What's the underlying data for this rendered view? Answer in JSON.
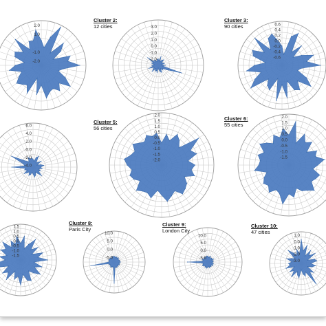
{
  "chart_data": [
    {
      "type": "radar",
      "title": "",
      "subtitle": "",
      "r_ticks": [
        "2.0",
        "1.0",
        "-1.0",
        "-2.0"
      ],
      "rlim": [
        -2.5,
        2.5
      ],
      "series_color": "#4a7abf",
      "values": [
        0.3,
        -0.5,
        0.8,
        2.3,
        -0.8,
        1.0,
        0.2,
        -1.0,
        0.9,
        0.5,
        1.8,
        0.0,
        -0.5,
        0.5,
        1.5,
        0.3,
        1.0,
        0.4,
        0.6,
        1.2,
        -0.3,
        0.8,
        -1.0,
        1.0,
        0.2,
        0.5,
        0.9,
        0.3,
        -0.2,
        1.1,
        0.4,
        -0.6,
        0.6,
        0.8,
        0.0,
        1.6,
        -0.3,
        0.5,
        0.4,
        1.5
      ]
    },
    {
      "type": "radar",
      "title": "Cluster 2:",
      "subtitle": "12 cities",
      "r_ticks": [
        "4.0",
        "3.0",
        "2.0",
        "1.0",
        "0.0",
        "-1.0",
        "-2.0"
      ],
      "rlim": [
        -3,
        4
      ],
      "series_color": "#4a7abf",
      "values": [
        -2.0,
        -2.3,
        -1.6,
        -2.4,
        -2.0,
        -1.8,
        -2.4,
        -2.2,
        -2.0,
        -2.5,
        -1.9,
        -2.3,
        0.8,
        -1.5,
        -2.2,
        -2.0,
        -2.4,
        -1.8,
        -2.0,
        -2.3,
        -2.6,
        -1.9,
        -2.2,
        -2.0,
        -2.4,
        -1.7,
        -2.1,
        -2.3,
        -1.5,
        -2.2,
        -2.0,
        -2.4,
        -1.9,
        -2.2,
        -1.0,
        -2.3,
        -2.0,
        -2.2,
        -2.4,
        -2.1
      ]
    },
    {
      "type": "radar",
      "title": "Cluster 3:",
      "subtitle": "90 cities",
      "r_ticks": [
        "0.6",
        "0.4",
        "0.2",
        "0.0",
        "-0.2",
        "-0.4",
        "-0.6"
      ],
      "rlim": [
        -0.9,
        0.7
      ],
      "series_color": "#4a7abf",
      "values": [
        -0.2,
        -0.5,
        0.2,
        0.4,
        -0.3,
        0.1,
        -0.4,
        -0.1,
        0.3,
        0.0,
        0.5,
        -0.2,
        -0.3,
        0.1,
        0.4,
        -0.1,
        0.2,
        0.1,
        -0.3,
        0.3,
        -0.2,
        0.4,
        -0.4,
        0.1,
        0.0,
        -0.2,
        0.5,
        0.2,
        -0.1,
        0.4,
        0.1,
        -0.3,
        0.2,
        0.3,
        -0.1,
        0.5,
        -0.2,
        0.2,
        0.3,
        0.0
      ]
    },
    {
      "type": "radar",
      "title": "",
      "subtitle": "",
      "r_ticks": [
        "6.0",
        "4.0",
        "2.0",
        "0.0",
        "-2.0",
        "-4.0"
      ],
      "rlim": [
        -4.5,
        6.5
      ],
      "series_color": "#4a7abf",
      "values": [
        -2.5,
        -3.0,
        -2.0,
        -1.5,
        -3.2,
        -2.8,
        -2.0,
        -3.4,
        -2.5,
        -1.8,
        -2.6,
        -2.2,
        -3.0,
        -2.4,
        -2.8,
        -1.5,
        -2.6,
        -3.1,
        -2.4,
        -2.0,
        -2.8,
        -3.2,
        -2.6,
        -2.2,
        -3.0,
        -2.5,
        -1.8,
        -2.9,
        -2.3,
        -2.6,
        0.8,
        -2.4,
        -2.0,
        1.5,
        -1.6,
        -2.5,
        -2.8,
        -1.8,
        -2.4,
        -2.2
      ]
    },
    {
      "type": "radar",
      "title": "Cluster 5:",
      "subtitle": "56 cities",
      "r_ticks": [
        "2.0",
        "1.5",
        "1.0",
        "0.5",
        "0.0",
        "-0.5",
        "-1.0",
        "-1.5",
        "-2.0"
      ],
      "rlim": [
        -2.5,
        2.2
      ],
      "series_color": "#4a7abf",
      "values": [
        -0.5,
        0.3,
        -0.2,
        0.6,
        0.2,
        -0.3,
        1.6,
        0.4,
        0.8,
        -0.1,
        0.5,
        0.2,
        0.6,
        -0.2,
        0.3,
        0.5,
        0.7,
        0.1,
        0.4,
        0.8,
        0.2,
        -0.2,
        0.6,
        0.3,
        0.4,
        0.7,
        -0.1,
        0.3,
        0.5,
        0.2,
        0.6,
        0.9,
        0.4,
        0.2,
        0.7,
        0.3,
        0.1,
        0.5,
        0.2,
        0.4
      ]
    },
    {
      "type": "radar",
      "title": "Cluster 6:",
      "subtitle": "55 cities",
      "r_ticks": [
        "2.0",
        "1.5",
        "1.0",
        "0.5",
        "0.0",
        "-0.5",
        "-1.0",
        "-1.5"
      ],
      "rlim": [
        -2.2,
        2.2
      ],
      "series_color": "#4a7abf",
      "values": [
        0.4,
        1.6,
        -0.2,
        0.8,
        0.2,
        0.6,
        -0.3,
        0.5,
        0.2,
        0.9,
        0.3,
        -0.1,
        0.6,
        0.4,
        0.2,
        0.9,
        0.5,
        0.3,
        -0.1,
        0.6,
        0.3,
        1.2,
        0.4,
        0.2,
        0.7,
        0.3,
        0.5,
        0.2,
        -0.2,
        0.8,
        0.4,
        0.3,
        0.6,
        0.2,
        0.9,
        0.5,
        0.1,
        0.7,
        0.3,
        1.0
      ]
    },
    {
      "type": "radar",
      "title": "",
      "subtitle": "",
      "r_ticks": [
        "1.5",
        "1.0",
        "0.5",
        "0.0",
        "-0.5",
        "-1.0",
        "-1.5"
      ],
      "rlim": [
        -2.0,
        1.7
      ],
      "series_color": "#4a7abf",
      "values": [
        -0.3,
        0.5,
        -0.8,
        -0.2,
        0.6,
        -0.5,
        0.2,
        -0.7,
        0.4,
        -0.2,
        0.8,
        -0.6,
        0.3,
        -0.4,
        0.5,
        -0.1,
        -0.6,
        0.4,
        0.2,
        -0.5,
        0.6,
        -0.3,
        0.1,
        -0.7,
        0.5,
        -0.2,
        0.3,
        -0.6,
        0.4,
        0.8,
        -0.4,
        0.2,
        -0.5,
        0.3,
        -0.1,
        0.6,
        -0.4,
        0.2,
        -0.3,
        0.5
      ]
    },
    {
      "type": "radar",
      "title": "Cluster 8:",
      "subtitle": "Paris City",
      "r_ticks": [
        "10.0",
        "5.0",
        "0.0",
        "-5.0"
      ],
      "rlim": [
        -8,
        11
      ],
      "series_color": "#4a7abf",
      "values": [
        -4.5,
        -4.8,
        -5.2,
        -4.6,
        -5.0,
        -4.4,
        -4.9,
        -5.1,
        -4.6,
        -4.8,
        -4.2,
        -5.0,
        -4.7,
        -4.5,
        -5.2,
        -4.6,
        -4.9,
        -4.4,
        -4.8,
        -4.6,
        5.0,
        -4.8,
        -5.0,
        -4.6,
        -4.3,
        -4.9,
        -5.1,
        -4.5,
        -4.8,
        6.5,
        -4.6,
        -5.0,
        -4.7,
        -4.4,
        -4.9,
        -4.6,
        -5.2,
        -4.8,
        -4.5,
        -4.7
      ]
    },
    {
      "type": "radar",
      "title": "Cluster 9:",
      "subtitle": "London City",
      "r_ticks": [
        "15.0",
        "10.0",
        "5.0",
        "0.0",
        "-5.0"
      ],
      "rlim": [
        -8,
        15
      ],
      "series_color": "#4a7abf",
      "values": [
        -4.0,
        -5.0,
        -4.5,
        -3.8,
        -5.2,
        -4.4,
        -4.8,
        -3.6,
        -5.0,
        -4.2,
        -4.6,
        -5.1,
        -4.0,
        -4.7,
        -3.9,
        -5.0,
        -4.3,
        -4.8,
        -4.1,
        -5.2,
        -4.5,
        -3.9,
        -4.7,
        -4.2,
        -5.0,
        -4.4,
        -3.8,
        -4.6,
        -4.9,
        -4.1,
        5.5,
        -4.5,
        -4.8,
        -3.9,
        -4.6,
        -5.0,
        -4.2,
        -4.7,
        -4.4,
        -4.0
      ]
    },
    {
      "type": "radar",
      "title": "Cluster 10:",
      "subtitle": "47 cities",
      "r_ticks": [
        "1.0",
        "0.0",
        "-1.0",
        "-2.0",
        "-3.0"
      ],
      "rlim": [
        -3.5,
        1.5
      ],
      "series_color": "#4a7abf",
      "values": [
        0.3,
        -1.5,
        -0.5,
        -2.2,
        -1.0,
        -1.8,
        -0.8,
        -2.4,
        -1.3,
        -1.0,
        -2.0,
        -1.2,
        -1.7,
        -2.4,
        -1.1,
        -1.6,
        0.5,
        -2.0,
        -1.4,
        -1.8,
        -2.5,
        -1.2,
        -1.6,
        -2.1,
        -0.9,
        -1.9,
        -1.3,
        -2.3,
        -1.0,
        -1.7,
        -1.5,
        -2.0,
        -1.1,
        -1.8,
        -2.2,
        -0.6,
        -1.5,
        -2.0,
        -1.2,
        -1.9
      ]
    }
  ]
}
